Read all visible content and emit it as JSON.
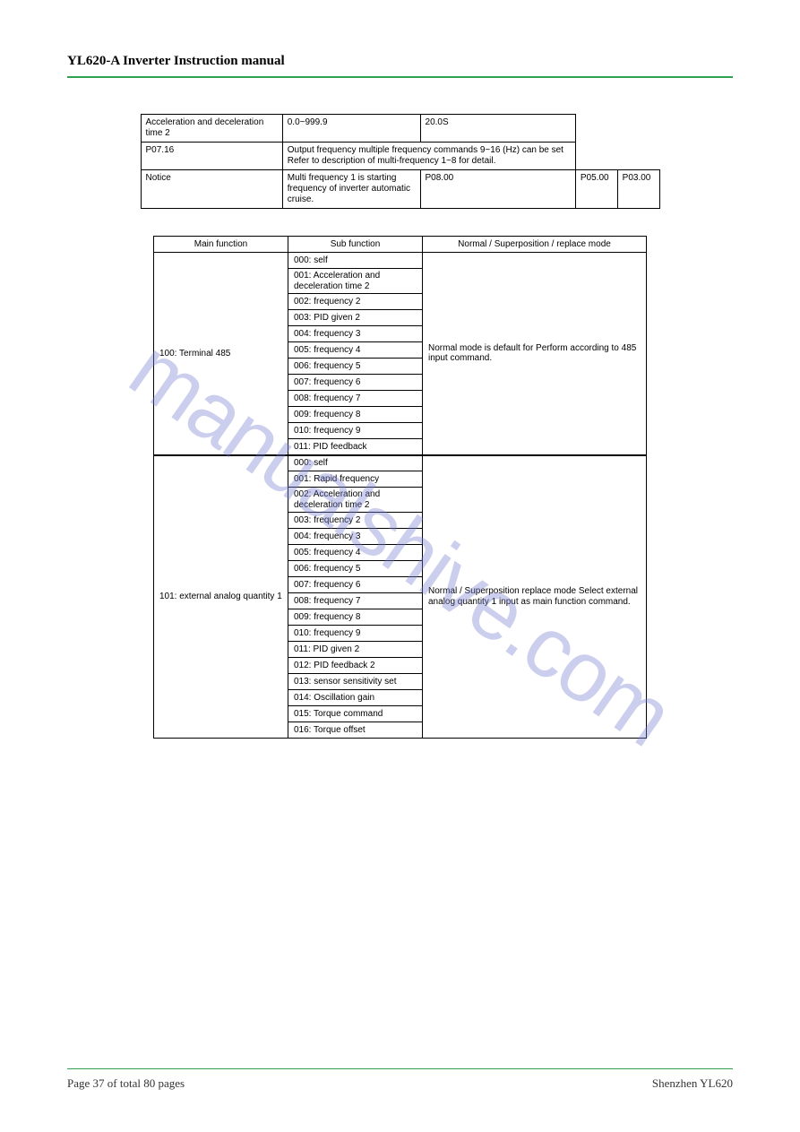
{
  "header": {
    "title": "YL620-A Inverter Instruction manual",
    "rule_color": "#2fa24f"
  },
  "watermark": "manualshive.com",
  "top_table": {
    "r1": [
      "Acceleration and deceleration time 2",
      "0.0~999.9",
      "20.0S"
    ],
    "r2": [
      "P07.16",
      "Output frequency  multiple frequency commands 9~16 (Hz) can be set Refer to description of multi-frequency 1~8 for detail."
    ],
    "r3": [
      "Notice",
      "Multi frequency 1 is starting frequency of inverter automatic cruise.",
      "P08.00",
      "P05.00",
      "P03.00"
    ]
  },
  "main_table": {
    "headers": [
      "Main function",
      "Sub function",
      "Normal / Superposition / replace mode"
    ],
    "groups": [
      {
        "main": "100: Terminal 485",
        "mode": "Normal mode is default for  Perform according to 485 input command.",
        "subs": [
          "000: self",
          "001: Acceleration and deceleration time 2",
          "002: frequency 2",
          "003: PID given 2",
          "004: frequency 3",
          "005: frequency 4",
          "006: frequency 5",
          "007: frequency 6",
          "008: frequency 7",
          "009: frequency 8",
          "010: frequency 9",
          "011: PID feedback"
        ]
      },
      {
        "main": "101: external analog quantity 1",
        "mode": "Normal / Superposition replace mode  Select external analog quantity 1 input as main function command.",
        "subs": [
          "000: self",
          "001: Rapid frequency",
          "002: Acceleration and deceleration time 2",
          "003: frequency 2",
          "004: frequency 3",
          "005: frequency 4",
          "006: frequency 5",
          "007: frequency 6",
          "008: frequency 7",
          "009: frequency 8",
          "010: frequency 9",
          "011: PID given 2",
          "012: PID feedback 2",
          "013: sensor sensitivity set",
          "014: Oscillation gain",
          "015: Torque command",
          "016: Torque offset"
        ]
      }
    ]
  },
  "footer": {
    "left": "Page 37 of total 80 pages",
    "right": "Shenzhen YL620"
  }
}
